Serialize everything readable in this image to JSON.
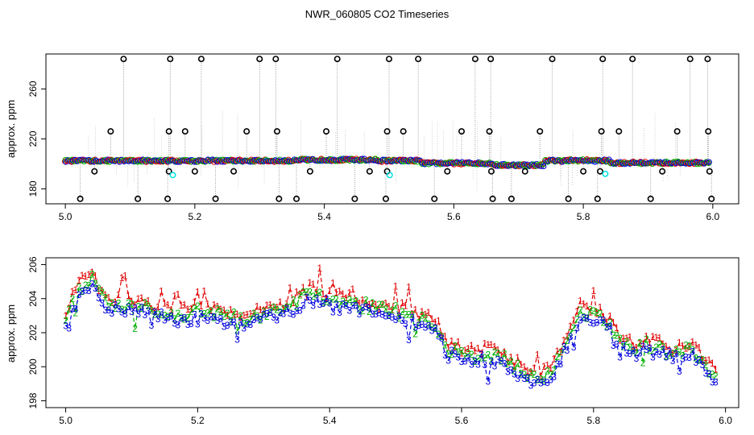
{
  "title": "NWR_060805  CO2 Timeseries",
  "chart_data": [
    {
      "type": "scatter",
      "ylabel": "approx. ppm",
      "xlim": [
        4.97,
        6.04
      ],
      "ylim": [
        168,
        288
      ],
      "x_ticks": [
        5.0,
        5.2,
        5.4,
        5.6,
        5.8,
        6.0
      ],
      "y_ticks": [
        180,
        220,
        260
      ],
      "x_tick_labels": [
        "5.0",
        "5.2",
        "5.4",
        "5.6",
        "5.8",
        "6.0"
      ],
      "y_tick_labels": [
        "180",
        "220",
        "260"
      ],
      "colors": {
        "s1": "#e00000",
        "s2": "#00b000",
        "s3": "#0000dd",
        "cyan": "#00e0e0",
        "outlier": "#000000"
      },
      "spikes_high": [
        5.09,
        5.162,
        5.21,
        5.3,
        5.325,
        5.42,
        5.5,
        5.545,
        5.633,
        5.657,
        5.752,
        5.83,
        5.876,
        5.965,
        5.992
      ],
      "spikes_mid": [
        5.07,
        5.16,
        5.185,
        5.28,
        5.327,
        5.403,
        5.497,
        5.522,
        5.612,
        5.655,
        5.733,
        5.828,
        5.855,
        5.945,
        5.993
      ],
      "spikes_low1": [
        5.045,
        5.16,
        5.2,
        5.26,
        5.378,
        5.47,
        5.497,
        5.59,
        5.658,
        5.71,
        5.8,
        5.826,
        5.922,
        5.995
      ],
      "spikes_low2": [
        5.023,
        5.112,
        5.158,
        5.232,
        5.33,
        5.357,
        5.447,
        5.495,
        5.57,
        5.66,
        5.689,
        5.777,
        5.822,
        5.904,
        5.998
      ],
      "cyan_points": [
        [
          5.166,
          191
        ],
        [
          5.501,
          191
        ],
        [
          5.834,
          192
        ]
      ]
    },
    {
      "type": "line",
      "ylabel": "approx. ppm",
      "xlim": [
        4.97,
        6.02
      ],
      "ylim": [
        197.6,
        206.4
      ],
      "x_ticks": [
        5.0,
        5.2,
        5.4,
        5.6,
        5.8,
        6.0
      ],
      "y_ticks": [
        198,
        200,
        202,
        204,
        206
      ],
      "x_tick_labels": [
        "5.0",
        "5.2",
        "5.4",
        "5.6",
        "5.8",
        "6.0"
      ],
      "y_tick_labels": [
        "198",
        "200",
        "202",
        "204",
        "206"
      ],
      "series": [
        {
          "label": "1",
          "color": "#e00000",
          "offset": 0.35
        },
        {
          "label": "2",
          "color": "#00b000",
          "offset": 0.05
        },
        {
          "label": "3",
          "color": "#0000dd",
          "offset": -0.25
        }
      ],
      "baseline": {
        "x": [
          5.0,
          5.02,
          5.04,
          5.05,
          5.07,
          5.1,
          5.13,
          5.16,
          5.18,
          5.2,
          5.23,
          5.26,
          5.29,
          5.32,
          5.34,
          5.36,
          5.38,
          5.4,
          5.43,
          5.46,
          5.5,
          5.53,
          5.56,
          5.58,
          5.6,
          5.62,
          5.64,
          5.66,
          5.68,
          5.7,
          5.72,
          5.74,
          5.76,
          5.78,
          5.8,
          5.82,
          5.84,
          5.86,
          5.88,
          5.9,
          5.92,
          5.94,
          5.96,
          5.98
        ],
        "y": [
          203.0,
          204.5,
          205.2,
          204.2,
          203.6,
          203.5,
          203.3,
          203.0,
          203.0,
          203.2,
          203.0,
          202.8,
          202.9,
          203.3,
          203.5,
          204.0,
          204.2,
          203.8,
          203.7,
          203.5,
          203.2,
          202.8,
          202.4,
          200.9,
          200.8,
          200.6,
          200.7,
          200.5,
          200.0,
          199.4,
          199.3,
          199.9,
          201.5,
          203.2,
          203.0,
          202.6,
          201.4,
          201.0,
          201.3,
          201.0,
          200.8,
          201.0,
          200.6,
          199.4
        ]
      }
    }
  ]
}
